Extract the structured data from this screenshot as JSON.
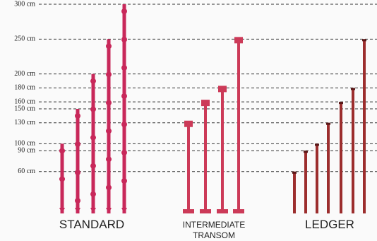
{
  "chart_data": {
    "type": "bar",
    "ylim": [
      0,
      300
    ],
    "yticks": [
      {
        "value": 60,
        "label": "60 cm"
      },
      {
        "value": 90,
        "label": "90 cm"
      },
      {
        "value": 100,
        "label": "100 cm"
      },
      {
        "value": 130,
        "label": "130 cm"
      },
      {
        "value": 150,
        "label": "150 cm"
      },
      {
        "value": 160,
        "label": "160 cm"
      },
      {
        "value": 180,
        "label": "180 cm"
      },
      {
        "value": 200,
        "label": "200 cm"
      },
      {
        "value": 250,
        "label": "250 cm"
      },
      {
        "value": 300,
        "label": "300 cm"
      }
    ],
    "grid": true,
    "series": [
      {
        "name": "STANDARD",
        "color": "#c8285a",
        "values": [
          100,
          150,
          200,
          250,
          300
        ]
      },
      {
        "name": "INTERMEDIATE TRANSOM",
        "color": "#cc3a58",
        "values": [
          130,
          160,
          180,
          250
        ]
      },
      {
        "name": "LEDGER",
        "color": "#9c2e2e",
        "values": [
          60,
          90,
          100,
          130,
          160,
          180,
          250
        ]
      }
    ]
  }
}
